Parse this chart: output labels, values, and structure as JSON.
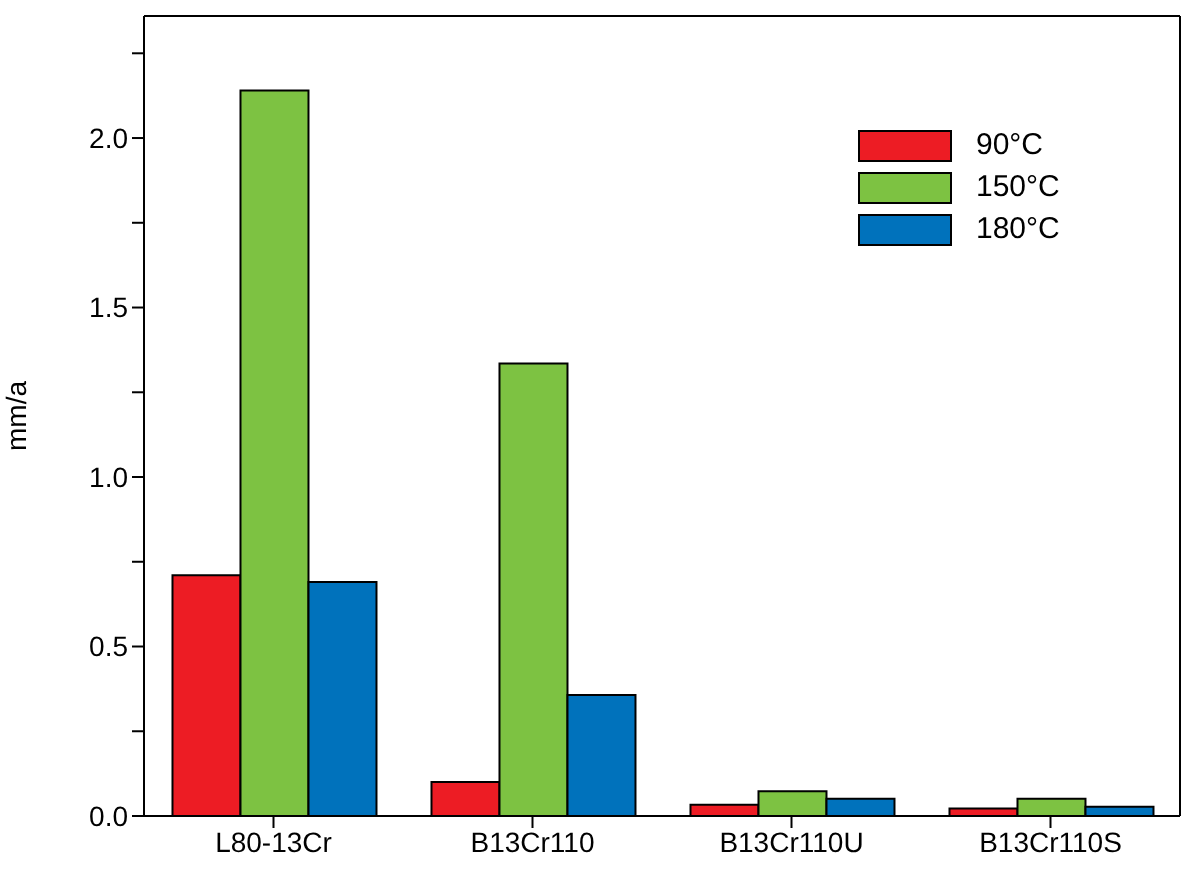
{
  "chart_data": {
    "type": "bar",
    "ylabel": "mm/a",
    "categories": [
      "L80-13Cr",
      "B13Cr110",
      "B13Cr110U",
      "B13Cr110S"
    ],
    "series": [
      {
        "name": "90°C",
        "color": "#ed1c24",
        "values": [
          0.71,
          0.1,
          0.033,
          0.022
        ]
      },
      {
        "name": "150°C",
        "color": "#7dc242",
        "values": [
          2.14,
          1.335,
          0.073,
          0.051
        ]
      },
      {
        "name": "180°C",
        "color": "#0072bc",
        "values": [
          0.69,
          0.357,
          0.051,
          0.027
        ]
      }
    ],
    "ylim": [
      0,
      2.36
    ],
    "yticks": [
      {
        "value": 0,
        "label": "0.0"
      },
      {
        "value": 0.25,
        "label": null
      },
      {
        "value": 0.5,
        "label": "0.5"
      },
      {
        "value": 0.75,
        "label": null
      },
      {
        "value": 1,
        "label": "1.0"
      },
      {
        "value": 1.25,
        "label": null
      },
      {
        "value": 1.5,
        "label": "1.5"
      },
      {
        "value": 1.75,
        "label": null
      },
      {
        "value": 2,
        "label": "2.0"
      },
      {
        "value": 2.25,
        "label": null
      }
    ],
    "grid": false,
    "legend": "top right"
  }
}
